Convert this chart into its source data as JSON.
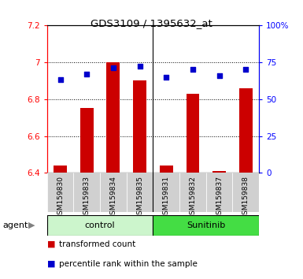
{
  "title": "GDS3109 / 1395632_at",
  "categories": [
    "GSM159830",
    "GSM159833",
    "GSM159834",
    "GSM159835",
    "GSM159831",
    "GSM159832",
    "GSM159837",
    "GSM159838"
  ],
  "bar_values": [
    6.44,
    6.75,
    7.0,
    6.9,
    6.44,
    6.83,
    6.41,
    6.86
  ],
  "dot_values": [
    63,
    67,
    71,
    72,
    65,
    70,
    66,
    70
  ],
  "ylim_left": [
    6.4,
    7.2
  ],
  "ylim_right": [
    0,
    100
  ],
  "yticks_left": [
    6.4,
    6.6,
    6.8,
    7.0,
    7.2
  ],
  "yticks_right": [
    0,
    25,
    50,
    75,
    100
  ],
  "ytick_labels_left": [
    "6.4",
    "6.6",
    "6.8",
    "7",
    "7.2"
  ],
  "ytick_labels_right": [
    "0",
    "25",
    "50",
    "75",
    "100%"
  ],
  "bar_color": "#cc0000",
  "dot_color": "#0000cc",
  "bar_base": 6.4,
  "groups": [
    {
      "label": "control",
      "indices": [
        0,
        1,
        2,
        3
      ],
      "color": "#ccf5cc"
    },
    {
      "label": "Sunitinib",
      "indices": [
        4,
        5,
        6,
        7
      ],
      "color": "#44dd44"
    }
  ],
  "legend_items": [
    "transformed count",
    "percentile rank within the sample"
  ],
  "bar_width": 0.5,
  "dot_size": 18,
  "xtick_bg": "#d0d0d0",
  "grid_yticks": [
    6.6,
    6.8,
    7.0
  ]
}
